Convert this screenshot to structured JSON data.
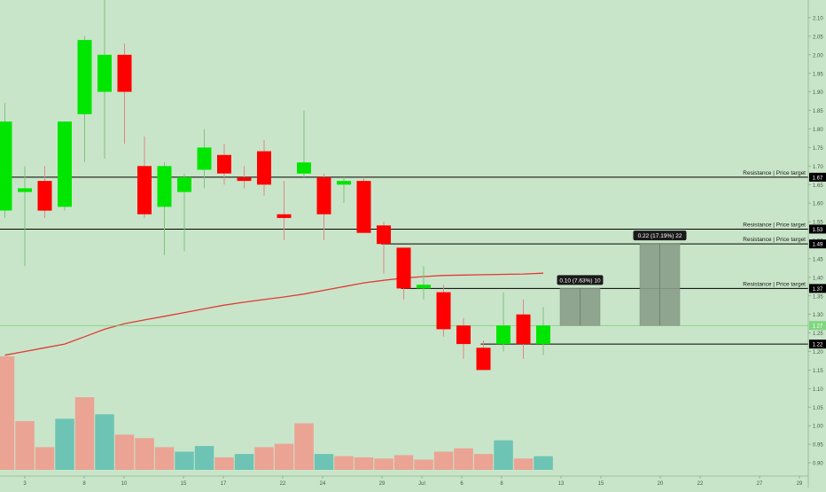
{
  "chart_data": {
    "type": "candlestick",
    "title": "",
    "xlabel": "",
    "ylabel": "",
    "ylim": [
      0.87,
      2.15
    ],
    "grid": false,
    "colors": {
      "background": "#c9e5c9",
      "bull": "#00e600",
      "bear": "#ff0000",
      "volume_bull": "#6dc4b4",
      "volume_bear": "#eba394",
      "moving_average": "#e03a3a",
      "target_box": "#8a9d8a",
      "label_bg": "#1a1a1a"
    },
    "x_ticks": [
      "3",
      "8",
      "10",
      "15",
      "17",
      "22",
      "24",
      "29",
      "Jul",
      "6",
      "8",
      "13",
      "15",
      "20",
      "22",
      "27",
      "29"
    ],
    "y_ticks": [
      "2.10",
      "2.05",
      "2.00",
      "1.95",
      "1.90",
      "1.85",
      "1.80",
      "1.75",
      "1.70",
      "1.65",
      "1.60",
      "1.55",
      "1.50",
      "1.45",
      "1.40",
      "1.35",
      "1.30",
      "1.25",
      "1.20",
      "1.15",
      "1.10",
      "1.05",
      "1.00",
      "0.95",
      "0.90"
    ],
    "candles": [
      {
        "open": 1.58,
        "high": 1.87,
        "low": 1.56,
        "close": 1.82
      },
      {
        "open": 1.63,
        "high": 1.7,
        "low": 1.43,
        "close": 1.64
      },
      {
        "open": 1.66,
        "high": 1.7,
        "low": 1.56,
        "close": 1.58
      },
      {
        "open": 1.59,
        "high": 1.82,
        "low": 1.58,
        "close": 1.82
      },
      {
        "open": 1.84,
        "high": 2.05,
        "low": 1.71,
        "close": 2.04
      },
      {
        "open": 1.9,
        "high": 2.17,
        "low": 1.72,
        "close": 2.0
      },
      {
        "open": 2.0,
        "high": 2.03,
        "low": 1.76,
        "close": 1.9
      },
      {
        "open": 1.7,
        "high": 1.78,
        "low": 1.56,
        "close": 1.57
      },
      {
        "open": 1.59,
        "high": 1.71,
        "low": 1.46,
        "close": 1.7
      },
      {
        "open": 1.63,
        "high": 1.68,
        "low": 1.47,
        "close": 1.67
      },
      {
        "open": 1.69,
        "high": 1.8,
        "low": 1.64,
        "close": 1.75
      },
      {
        "open": 1.73,
        "high": 1.76,
        "low": 1.65,
        "close": 1.68
      },
      {
        "open": 1.67,
        "high": 1.7,
        "low": 1.64,
        "close": 1.66
      },
      {
        "open": 1.74,
        "high": 1.77,
        "low": 1.62,
        "close": 1.65
      },
      {
        "open": 1.57,
        "high": 1.66,
        "low": 1.5,
        "close": 1.56
      },
      {
        "open": 1.68,
        "high": 1.85,
        "low": 1.67,
        "close": 1.71
      },
      {
        "open": 1.67,
        "high": 1.68,
        "low": 1.5,
        "close": 1.57
      },
      {
        "open": 1.65,
        "high": 1.67,
        "low": 1.6,
        "close": 1.66
      },
      {
        "open": 1.66,
        "high": 1.67,
        "low": 1.52,
        "close": 1.52
      },
      {
        "open": 1.54,
        "high": 1.55,
        "low": 1.41,
        "close": 1.49
      },
      {
        "open": 1.48,
        "high": 1.48,
        "low": 1.34,
        "close": 1.37
      },
      {
        "open": 1.37,
        "high": 1.43,
        "low": 1.34,
        "close": 1.38
      },
      {
        "open": 1.36,
        "high": 1.38,
        "low": 1.24,
        "close": 1.26
      },
      {
        "open": 1.27,
        "high": 1.29,
        "low": 1.18,
        "close": 1.22
      },
      {
        "open": 1.21,
        "high": 1.23,
        "low": 1.15,
        "close": 1.15
      },
      {
        "open": 1.22,
        "high": 1.36,
        "low": 1.2,
        "close": 1.27
      },
      {
        "open": 1.3,
        "high": 1.34,
        "low": 1.18,
        "close": 1.22
      },
      {
        "open": 1.22,
        "high": 1.32,
        "low": 1.19,
        "close": 1.27
      }
    ],
    "volume": [
      {
        "value": 100,
        "dir": "down"
      },
      {
        "value": 43,
        "dir": "down"
      },
      {
        "value": 20,
        "dir": "down"
      },
      {
        "value": 45,
        "dir": "up"
      },
      {
        "value": 64,
        "dir": "down"
      },
      {
        "value": 49,
        "dir": "up"
      },
      {
        "value": 31,
        "dir": "down"
      },
      {
        "value": 28,
        "dir": "down"
      },
      {
        "value": 20,
        "dir": "down"
      },
      {
        "value": 16,
        "dir": "up"
      },
      {
        "value": 21,
        "dir": "up"
      },
      {
        "value": 11,
        "dir": "down"
      },
      {
        "value": 14,
        "dir": "up"
      },
      {
        "value": 20,
        "dir": "down"
      },
      {
        "value": 23,
        "dir": "down"
      },
      {
        "value": 41,
        "dir": "down"
      },
      {
        "value": 14,
        "dir": "up"
      },
      {
        "value": 12,
        "dir": "down"
      },
      {
        "value": 11,
        "dir": "down"
      },
      {
        "value": 10,
        "dir": "down"
      },
      {
        "value": 13,
        "dir": "down"
      },
      {
        "value": 9,
        "dir": "down"
      },
      {
        "value": 16,
        "dir": "down"
      },
      {
        "value": 19,
        "dir": "down"
      },
      {
        "value": 14,
        "dir": "down"
      },
      {
        "value": 26,
        "dir": "up"
      },
      {
        "value": 10,
        "dir": "down"
      },
      {
        "value": 12,
        "dir": "up"
      }
    ],
    "moving_average": [
      1.19,
      1.2,
      1.21,
      1.22,
      1.24,
      1.26,
      1.275,
      1.285,
      1.295,
      1.305,
      1.315,
      1.325,
      1.333,
      1.34,
      1.347,
      1.355,
      1.365,
      1.375,
      1.385,
      1.392,
      1.398,
      1.402,
      1.405,
      1.406,
      1.407,
      1.408,
      1.409,
      1.411
    ],
    "horizontal_lines": [
      {
        "price": 1.67,
        "label": "Resistance | Price target",
        "price_label": "1.67"
      },
      {
        "price": 1.53,
        "label": "Resistance | Price target",
        "price_label": "1.53"
      },
      {
        "price": 1.49,
        "label": "Resistance | Price target",
        "price_label": "1.49"
      },
      {
        "price": 1.37,
        "label": "Resistance | Price target",
        "price_label": "1.37"
      },
      {
        "price": 1.22,
        "label": "",
        "price_label": "1.22"
      }
    ],
    "current_price": {
      "price": 1.27,
      "price_label": "1.27"
    },
    "target_boxes": [
      {
        "label": "0.10 (7.63%) 10",
        "bottom": 1.27,
        "top": 1.37
      },
      {
        "label": "0.22 (17.19%) 22",
        "bottom": 1.27,
        "top": 1.49
      }
    ]
  }
}
